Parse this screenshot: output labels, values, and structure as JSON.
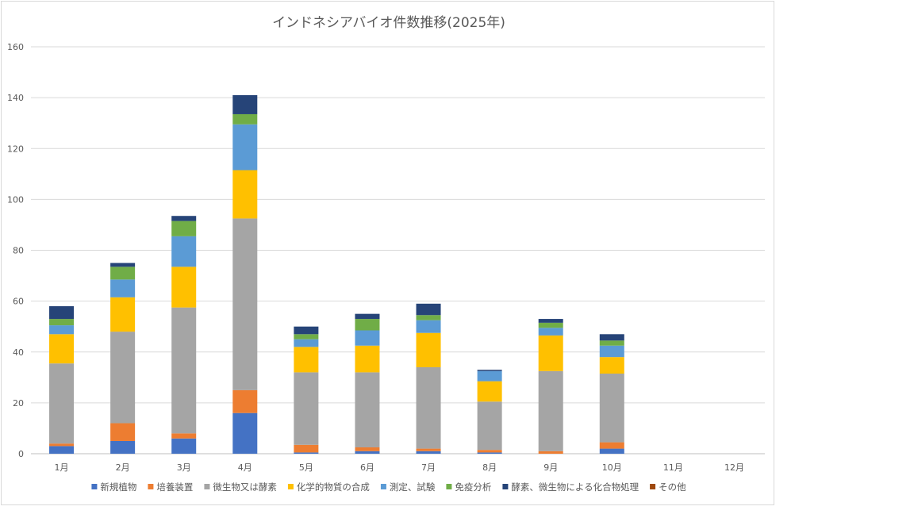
{
  "chart_data": {
    "type": "bar",
    "stacked": true,
    "title": "インドネシアバイオ件数推移(2025年)",
    "xlabel": "",
    "ylabel": "",
    "ylim": [
      0,
      160
    ],
    "yticks": [
      0,
      20,
      40,
      60,
      80,
      100,
      120,
      140,
      160
    ],
    "grid": true,
    "legend_position": "bottom",
    "categories": [
      "1月",
      "2月",
      "3月",
      "4月",
      "5月",
      "6月",
      "7月",
      "8月",
      "9月",
      "10月",
      "11月",
      "12月"
    ],
    "series": [
      {
        "name": "新規植物",
        "color": "#4472c4",
        "values": [
          3,
          5,
          6,
          16,
          0.5,
          1,
          1,
          0.5,
          0,
          2,
          0,
          0
        ]
      },
      {
        "name": "培養装置",
        "color": "#ed7d31",
        "values": [
          1,
          7,
          2,
          9,
          3,
          1.5,
          1,
          1,
          1,
          2.5,
          0,
          0
        ]
      },
      {
        "name": "微生物又は酵素",
        "color": "#a5a5a5",
        "values": [
          31.5,
          36,
          49.5,
          67.5,
          28.5,
          29.5,
          32,
          19,
          31.5,
          27,
          0,
          0
        ]
      },
      {
        "name": "化学的物質の合成",
        "color": "#ffc000",
        "values": [
          11.5,
          13.5,
          16,
          19,
          10,
          10.5,
          13.5,
          8,
          14,
          6.5,
          0,
          0
        ]
      },
      {
        "name": "測定、試験",
        "color": "#5b9bd5",
        "values": [
          3.5,
          7,
          12,
          18,
          3,
          6,
          5,
          4,
          3,
          4.5,
          0,
          0
        ]
      },
      {
        "name": "免疫分析",
        "color": "#70ad47",
        "values": [
          2.5,
          5,
          6,
          4,
          2,
          4.5,
          2,
          0,
          2,
          2,
          0,
          0
        ]
      },
      {
        "name": "酵素、微生物による化合物処理",
        "color": "#264478",
        "values": [
          5,
          1.5,
          2,
          7.5,
          3,
          2,
          4.5,
          0.5,
          1.5,
          2.5,
          0,
          0
        ]
      },
      {
        "name": "その他",
        "color": "#9e480e",
        "values": [
          0,
          0,
          0,
          0,
          0,
          0,
          0,
          0,
          0,
          0,
          0,
          0
        ]
      }
    ]
  }
}
